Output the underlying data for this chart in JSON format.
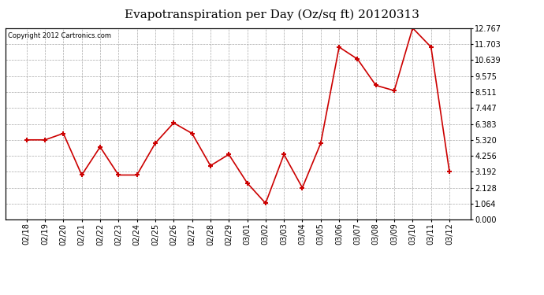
{
  "title": "Evapotranspiration per Day (Oz/sq ft) 20120313",
  "copyright_text": "Copyright 2012 Cartronics.com",
  "dates": [
    "02/18",
    "02/19",
    "02/20",
    "02/21",
    "02/22",
    "02/23",
    "02/24",
    "02/25",
    "02/26",
    "02/27",
    "02/28",
    "02/29",
    "03/01",
    "03/02",
    "03/03",
    "03/04",
    "03/05",
    "03/06",
    "03/07",
    "03/08",
    "03/09",
    "03/10",
    "03/11",
    "03/12"
  ],
  "values": [
    5.32,
    5.32,
    5.75,
    2.98,
    4.85,
    2.98,
    2.98,
    5.1,
    6.45,
    5.75,
    3.6,
    4.35,
    2.45,
    1.1,
    4.35,
    2.13,
    5.1,
    11.5,
    10.7,
    8.95,
    8.6,
    12.767,
    11.5,
    3.2
  ],
  "line_color": "#cc0000",
  "marker_color": "#cc0000",
  "bg_color": "#ffffff",
  "plot_bg_color": "#ffffff",
  "grid_color": "#aaaaaa",
  "title_fontsize": 11,
  "copyright_fontsize": 6,
  "tick_fontsize": 7,
  "yticks": [
    0.0,
    1.064,
    2.128,
    3.192,
    4.256,
    5.32,
    6.383,
    7.447,
    8.511,
    9.575,
    10.639,
    11.703,
    12.767
  ],
  "ylim": [
    0.0,
    12.767
  ]
}
